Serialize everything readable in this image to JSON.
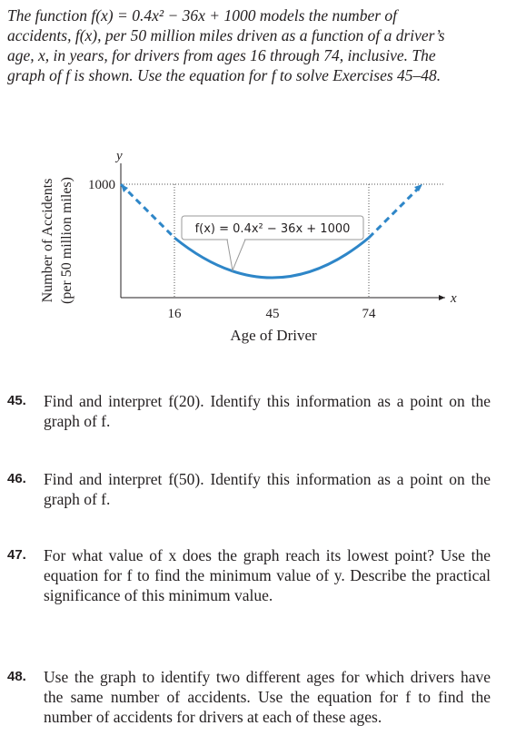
{
  "intro": "The function f(x) = 0.4x² − 36x + 1000 models the number of accidents, f(x), per 50 million miles driven as a function of a driver’s age, x, in years, for drivers from ages 16 through 74, inclusive. The graph of f is shown. Use the equation for f to solve Exercises 45–48.",
  "figure": {
    "y_axis_title": [
      "Number of Accidents",
      "(per 50 million miles)"
    ],
    "y_axis_label": "y",
    "x_axis_label": "x",
    "y_tick": "1000",
    "x_ticks": [
      "16",
      "45",
      "74"
    ],
    "x_axis_title": "Age of Driver",
    "equation": "f(x) = 0.4x² − 36x + 1000"
  },
  "exercises": [
    {
      "number": "45.",
      "text": "Find and interpret f(20). Identify this information as a point on the graph of f."
    },
    {
      "number": "46.",
      "text": "Find and interpret f(50). Identify this information as a point on the graph of f."
    },
    {
      "number": "47.",
      "text": "For what value of x does the graph reach its lowest point? Use the equation for f to find the minimum value of y. Describe the practical significance of this minimum value."
    },
    {
      "number": "48.",
      "text": "Use the graph to identify two different ages for which drivers have the same number of accidents. Use the equation for f to find the number of accidents for drivers at each of these ages."
    }
  ]
}
